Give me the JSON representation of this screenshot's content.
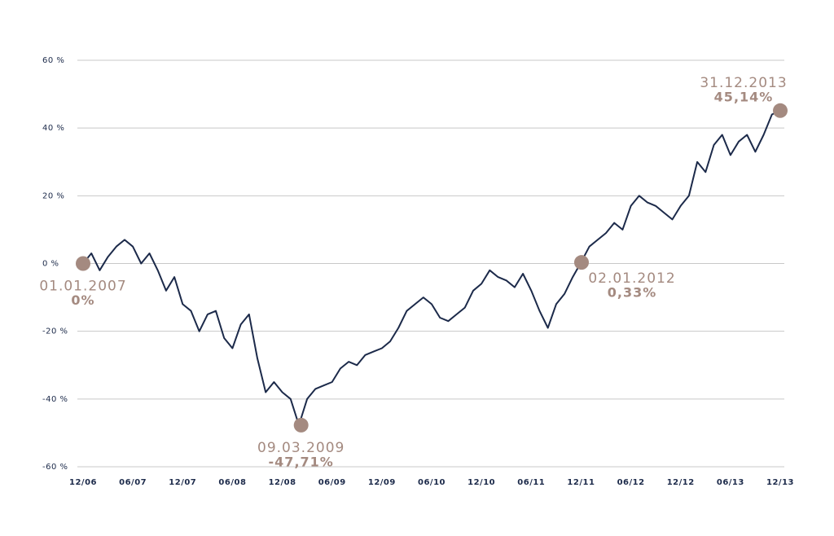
{
  "chart_data": {
    "type": "line",
    "categories": [
      "12/06",
      null,
      null,
      null,
      null,
      null,
      "06/07",
      null,
      null,
      null,
      null,
      null,
      "12/07",
      null,
      null,
      null,
      null,
      null,
      "06/08",
      null,
      null,
      null,
      null,
      null,
      "12/08",
      null,
      null,
      null,
      null,
      null,
      "06/09",
      null,
      null,
      null,
      null,
      null,
      "12/09",
      null,
      null,
      null,
      null,
      null,
      "06/10",
      null,
      null,
      null,
      null,
      null,
      "12/10",
      null,
      null,
      null,
      null,
      null,
      "06/11",
      null,
      null,
      null,
      null,
      null,
      "12/11",
      null,
      null,
      null,
      null,
      null,
      "06/12",
      null,
      null,
      null,
      null,
      null,
      "12/12",
      null,
      null,
      null,
      null,
      null,
      "06/13",
      null,
      null,
      null,
      null,
      null,
      "12/13"
    ],
    "series": [
      {
        "color": "#1c2a4a",
        "values": [
          0,
          3,
          -2,
          2,
          5,
          7,
          5,
          0,
          3,
          -2,
          -8,
          -4,
          -12,
          -14,
          -20,
          -15,
          -14,
          -22,
          -25,
          -18,
          -15,
          -28,
          -38,
          -35,
          -38,
          -40,
          -47.71,
          -40,
          -37,
          -36,
          -35,
          -31,
          -29,
          -30,
          -27,
          -26,
          -25,
          -23,
          -19,
          -14,
          -12,
          -10,
          -12,
          -16,
          -17,
          -15,
          -13,
          -8,
          -6,
          -2,
          -4,
          -5,
          -7,
          -3,
          -8,
          -14,
          -19,
          -12,
          -9,
          -4,
          0.33,
          5,
          7,
          9,
          12,
          10,
          17,
          20,
          18,
          17,
          15,
          13,
          17,
          20,
          30,
          27,
          35,
          38,
          32,
          36,
          38,
          33,
          38,
          44,
          45.14
        ]
      }
    ],
    "ylim": [
      -60,
      60
    ],
    "yticks": [
      {
        "value": -60,
        "label": "-60 %"
      },
      {
        "value": -40,
        "label": "-40 %"
      },
      {
        "value": -20,
        "label": "-20 %"
      },
      {
        "value": 0,
        "label": "0 %"
      },
      {
        "value": 20,
        "label": "20 %"
      },
      {
        "value": 40,
        "label": "40 %"
      },
      {
        "value": 60,
        "label": "60 %"
      }
    ],
    "grid": true,
    "annotations": [
      {
        "date": "01.01.2007",
        "value": 0,
        "label": "0%",
        "placement": "below",
        "color": "#a48a80"
      },
      {
        "date": "09.03.2009",
        "value": -47.71,
        "label": "-47,71%",
        "placement": "below",
        "color": "#a48a80"
      },
      {
        "date": "02.01.2012",
        "value": 0.33,
        "label": "0,33%",
        "placement": "below-right",
        "color": "#a48a80"
      },
      {
        "date": "31.12.2013",
        "value": 45.14,
        "label": "45,14%",
        "placement": "above-left",
        "color": "#a48a80"
      }
    ]
  }
}
